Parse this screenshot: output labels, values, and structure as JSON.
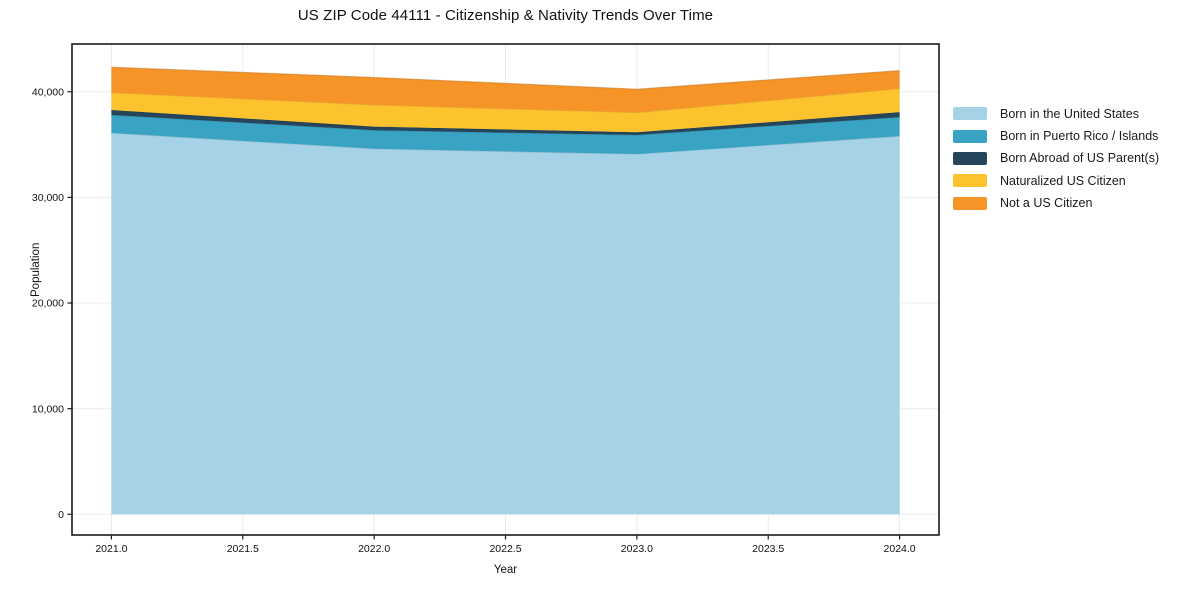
{
  "figure": {
    "background": "#ffffff"
  },
  "chart_data": {
    "type": "area",
    "stacked": true,
    "title": "US ZIP Code 44111 - Citizenship & Nativity Trends Over Time",
    "xlabel": "Year",
    "ylabel": "Population",
    "x": [
      2021,
      2022,
      2023,
      2024
    ],
    "series": [
      {
        "name": "Born in the United States",
        "color": "#a6d2e8",
        "values": [
          36100,
          34600,
          34100,
          35800
        ]
      },
      {
        "name": "Born in Puerto Rico / Islands",
        "color": "#38a3c3",
        "values": [
          1700,
          1750,
          1800,
          1800
        ]
      },
      {
        "name": "Born Abroad of US Parent(s)",
        "color": "#24455a",
        "values": [
          470,
          350,
          260,
          470
        ]
      },
      {
        "name": "Naturalized US Citizen",
        "color": "#fdc32f",
        "values": [
          1650,
          2050,
          1870,
          2230
        ]
      },
      {
        "name": "Not a US Citizen",
        "color": "#f79428",
        "values": [
          2400,
          2600,
          2210,
          1700
        ]
      }
    ],
    "totals_by_year": [
      42320,
      41350,
      40240,
      42000
    ],
    "x_ticks": [
      2021.0,
      2021.5,
      2022.0,
      2022.5,
      2023.0,
      2023.5,
      2024.0
    ],
    "x_tick_labels": [
      "2021.0",
      "2021.5",
      "2022.0",
      "2022.5",
      "2023.0",
      "2023.5",
      "2024.0"
    ],
    "y_ticks": [
      0,
      10000,
      20000,
      30000,
      40000
    ],
    "y_tick_labels": [
      "0",
      "10,000",
      "20,000",
      "30,000",
      "40,000"
    ],
    "xlim": [
      2020.85,
      2024.15
    ],
    "ylim": [
      -1960,
      44520
    ],
    "grid": true,
    "grid_color": "#ebebeb",
    "spine_color": "#1a1a1a",
    "tick_label_color": "#111111",
    "legend_position": "right"
  }
}
